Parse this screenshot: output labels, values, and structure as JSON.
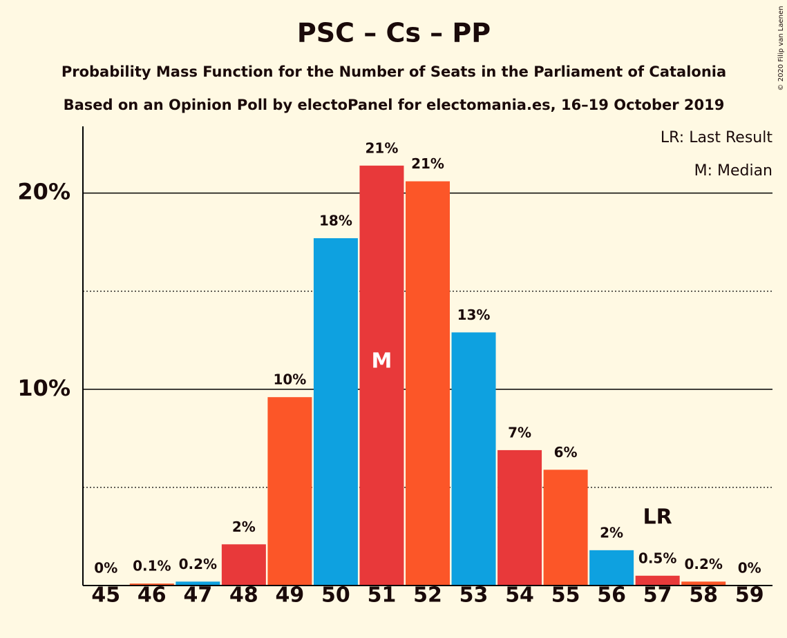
{
  "chart_data": {
    "type": "bar",
    "title": "PSC – Cs – PP",
    "subtitle": "Probability Mass Function for the Number of Seats in the Parliament of Catalonia",
    "subtitle2": "Based on an Opinion Poll by electoPanel for electomania.es, 16–19 October 2019",
    "credit": "© 2020 Filip van Laenen",
    "legend": [
      "LR: Last Result",
      "M: Median"
    ],
    "categories": [
      45,
      46,
      47,
      48,
      49,
      50,
      51,
      52,
      53,
      54,
      55,
      56,
      57,
      58,
      59
    ],
    "values": [
      0,
      0.1,
      0.2,
      2.1,
      9.6,
      17.7,
      21.4,
      20.6,
      12.9,
      6.9,
      5.9,
      1.8,
      0.5,
      0.2,
      0
    ],
    "value_labels": [
      "0%",
      "0.1%",
      "0.2%",
      "2%",
      "10%",
      "18%",
      "21%",
      "21%",
      "13%",
      "7%",
      "6%",
      "2%",
      "0.5%",
      "0.2%",
      "0%"
    ],
    "colors": [
      "#e8393a",
      "#fc5628",
      "#0ea1e0",
      "#e8393a",
      "#fc5628",
      "#0ea1e0",
      "#e8393a",
      "#fc5628",
      "#0ea1e0",
      "#e8393a",
      "#fc5628",
      "#0ea1e0",
      "#e8393a",
      "#fc5628",
      "#0ea1e0"
    ],
    "annotations": [
      {
        "text": "M",
        "x": 51,
        "inside": true
      },
      {
        "text": "LR",
        "x": 57,
        "inside": false
      }
    ],
    "ylim": [
      0,
      23.4
    ],
    "yticks": [
      {
        "value": 10,
        "label": "10%"
      },
      {
        "value": 20,
        "label": "20%"
      }
    ],
    "minor_yticks": [
      5,
      15
    ],
    "grid": true
  }
}
